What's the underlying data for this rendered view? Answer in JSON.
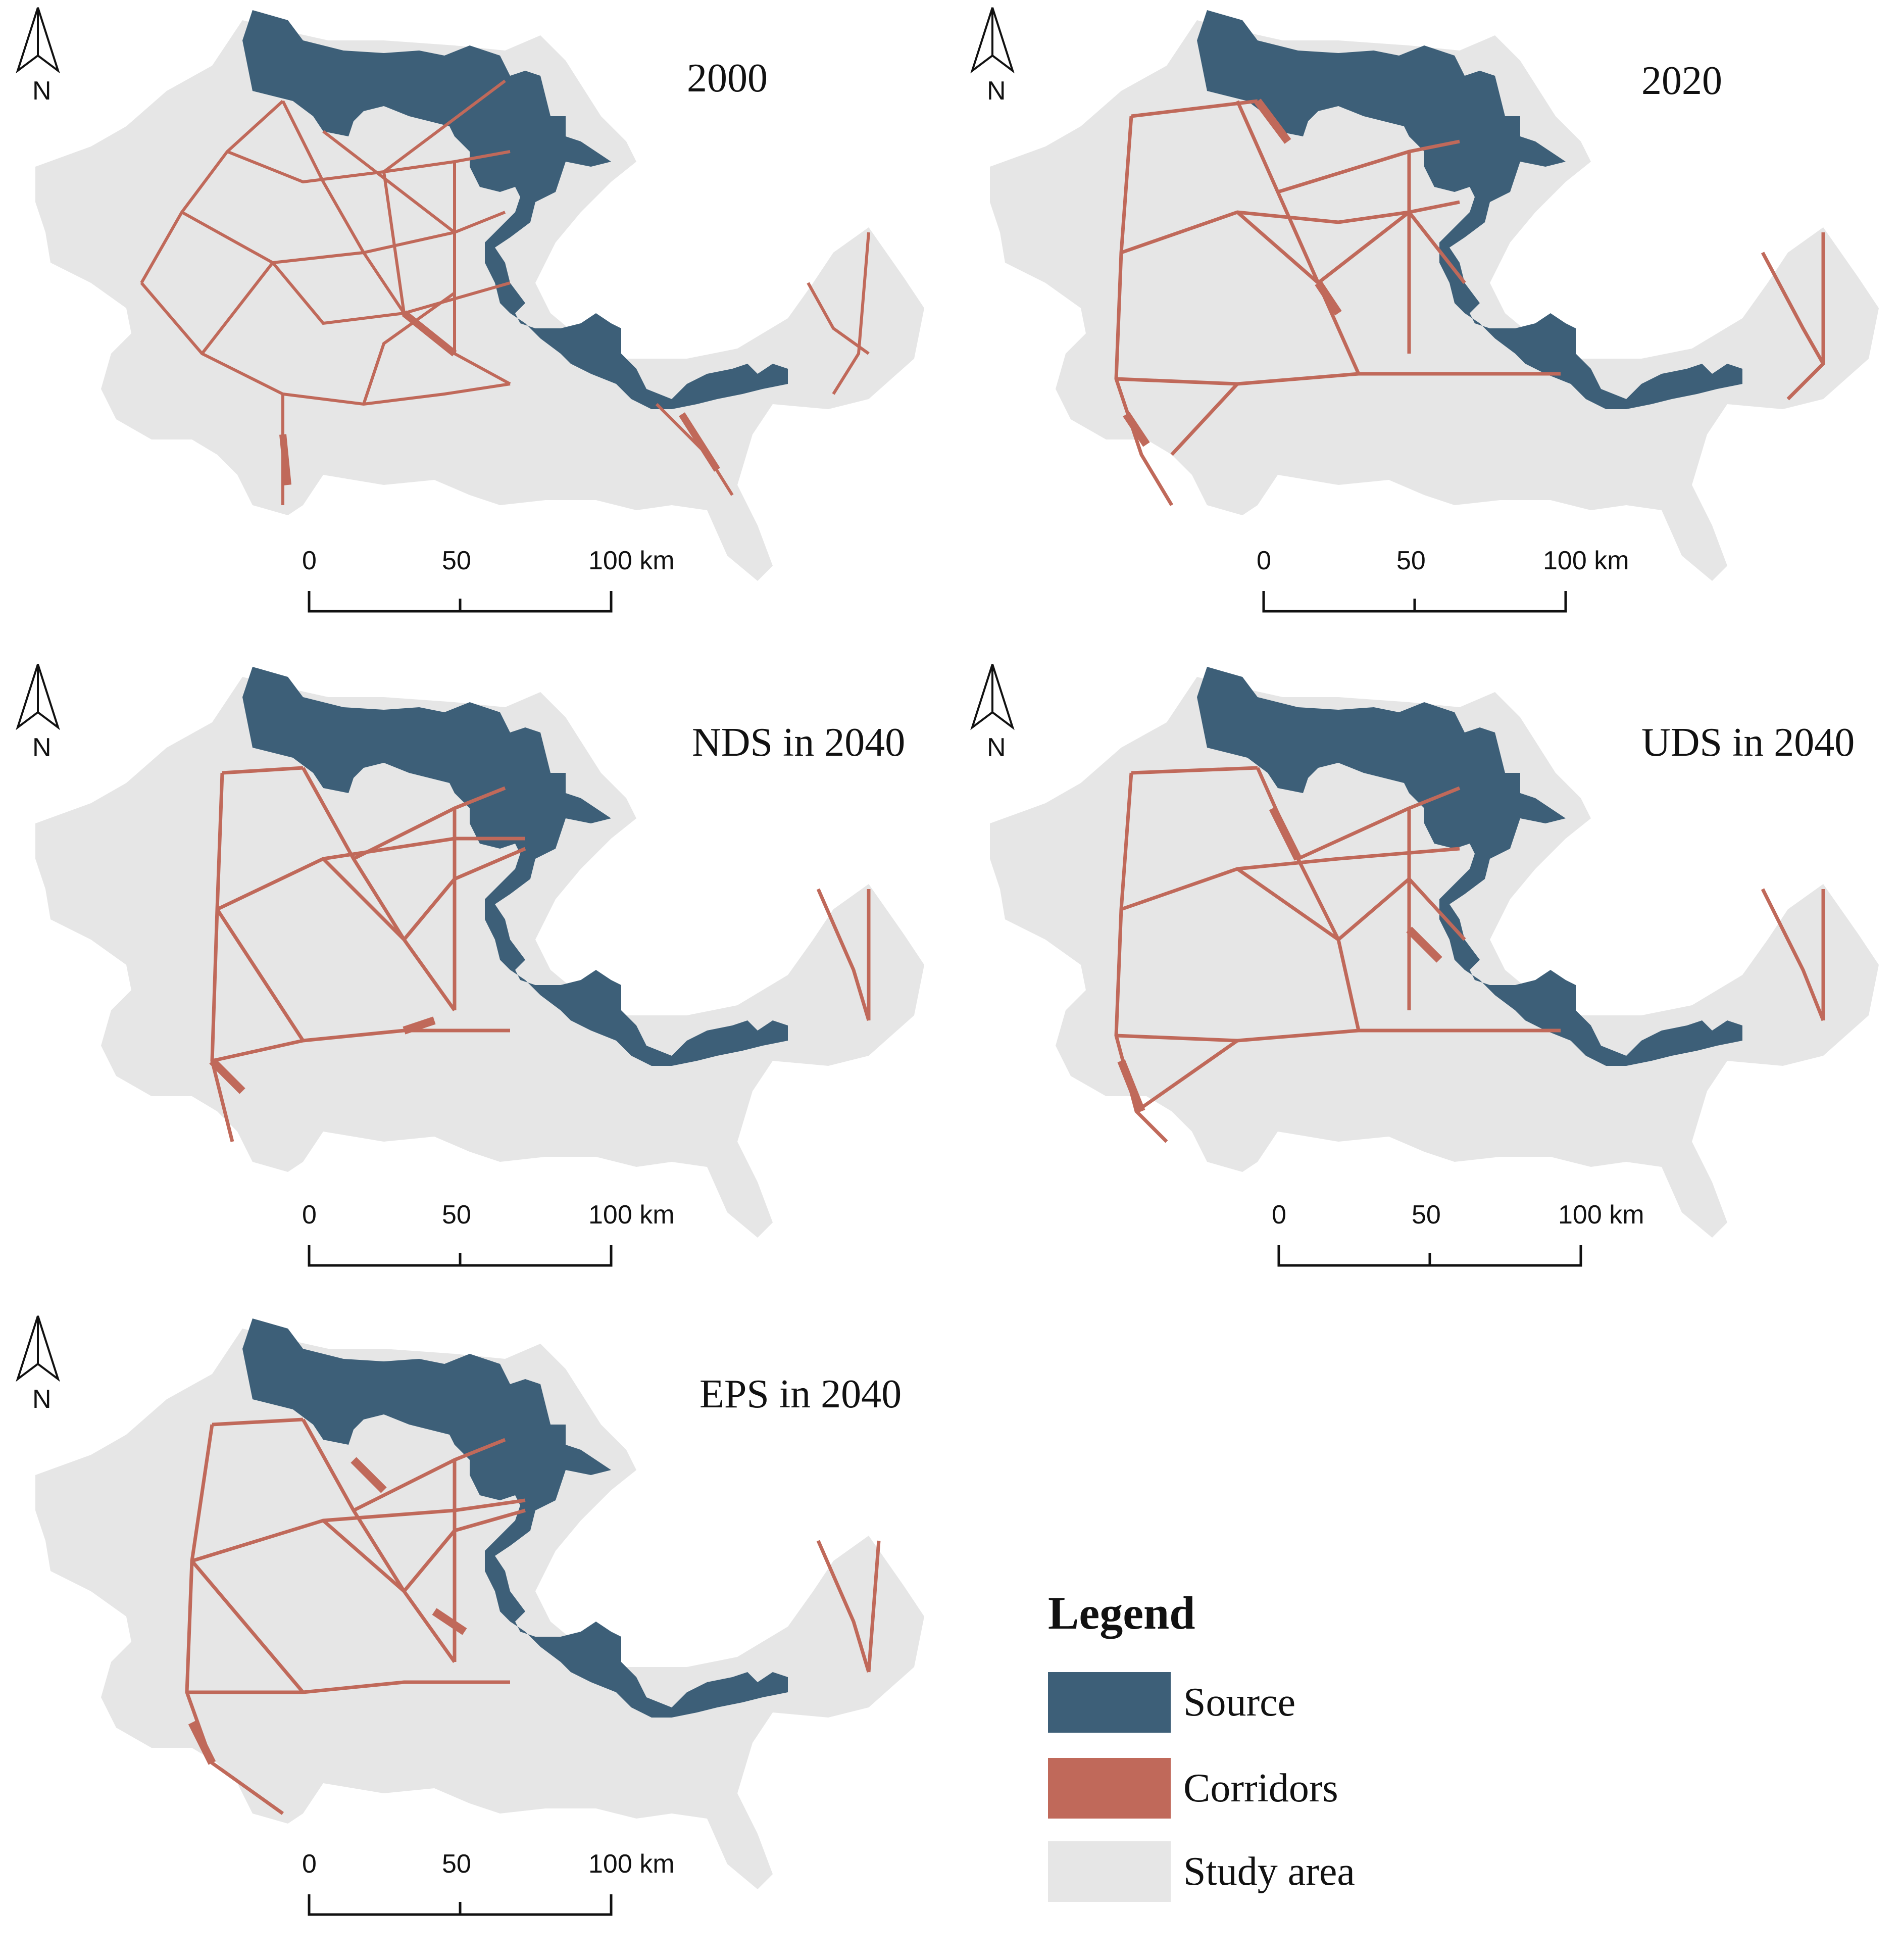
{
  "panels": [
    {
      "id": "p2000",
      "title": "2000"
    },
    {
      "id": "p2020",
      "title": "2020"
    },
    {
      "id": "pNDS",
      "title": "NDS in 2040"
    },
    {
      "id": "pUDS",
      "title": "UDS in 2040"
    },
    {
      "id": "pEPS",
      "title": "EPS in 2040"
    }
  ],
  "north_arrow_label": "N",
  "scale_bar": {
    "ticks": [
      "0",
      "50",
      "100 km"
    ]
  },
  "legend": {
    "title": "Legend",
    "items": [
      {
        "label": "Source",
        "color": "#3d5f78"
      },
      {
        "label": "Corridors",
        "color": "#c0695a"
      },
      {
        "label": "Study area",
        "color": "#e6e6e6"
      }
    ]
  },
  "colors": {
    "source": "#3d5f78",
    "corridor": "#c0695a",
    "study_area": "#e6e6e6"
  }
}
